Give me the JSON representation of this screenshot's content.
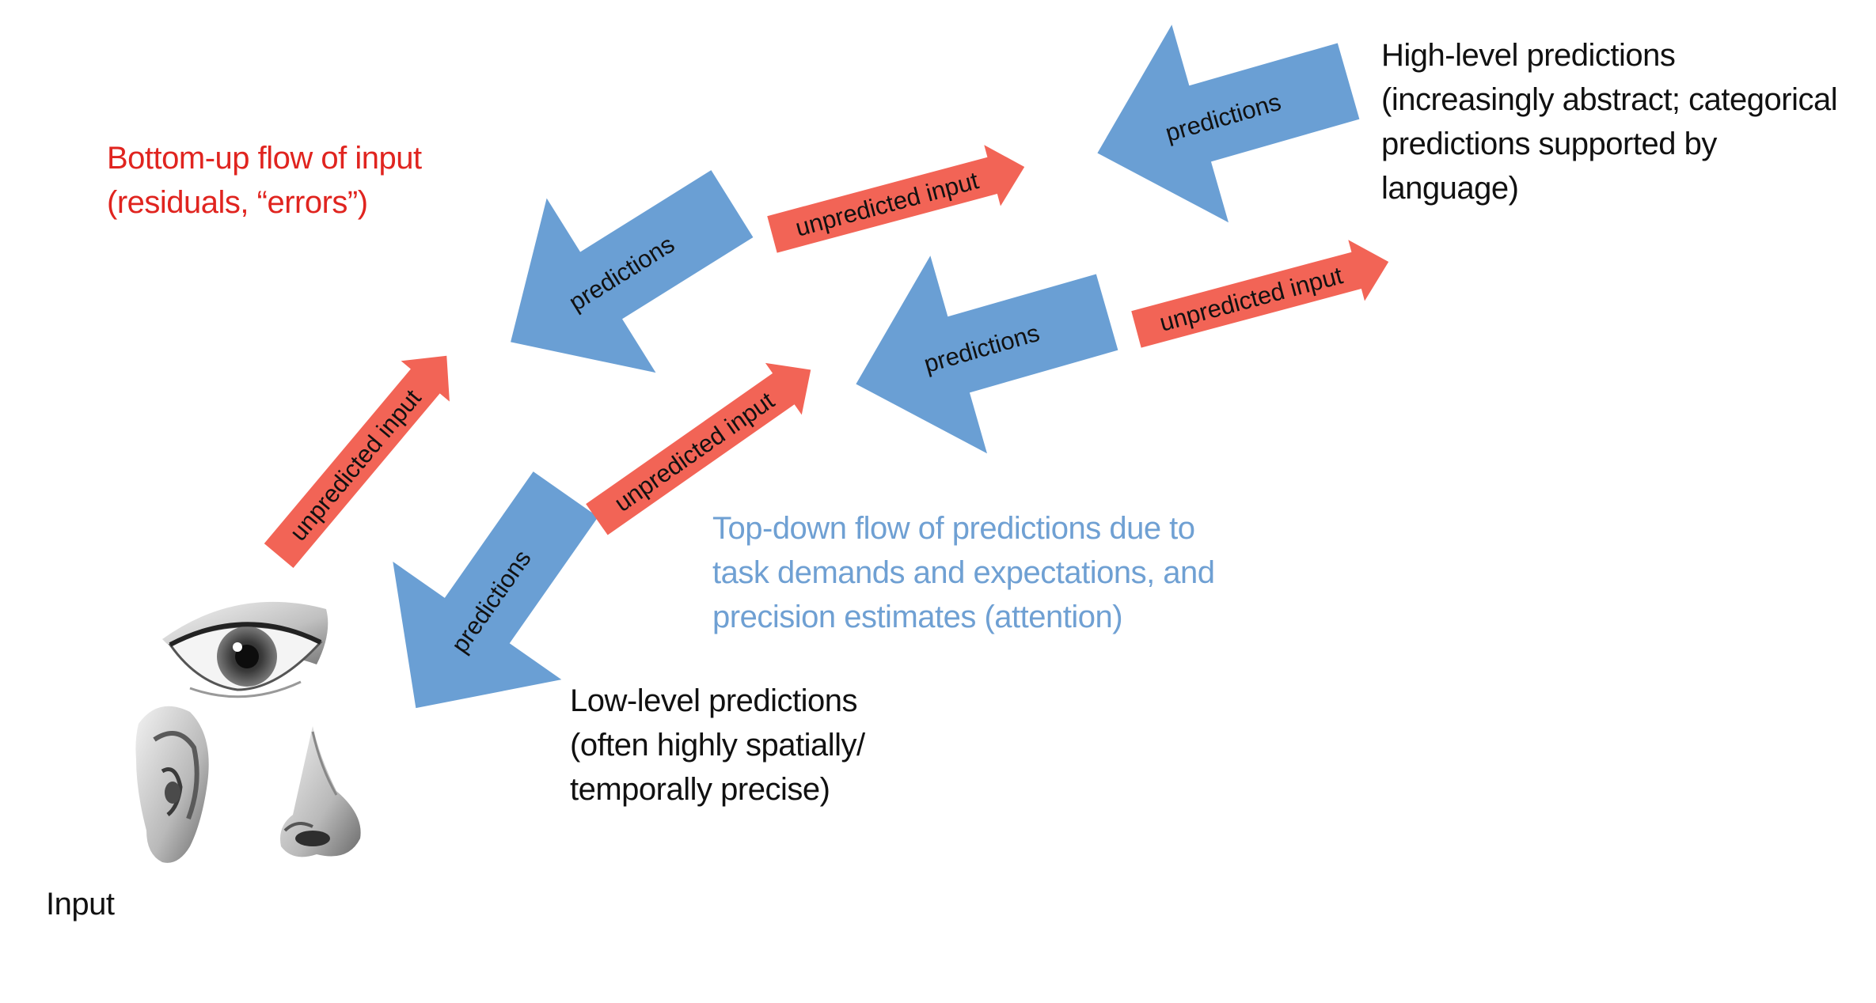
{
  "bottom_up_caption": {
    "line1": "Bottom-up flow of input",
    "line2": "(residuals, “errors”)"
  },
  "top_down_caption": {
    "line1": "Top-down flow of predictions due to",
    "line2": "task demands and expectations, and",
    "line3": "precision estimates (attention)"
  },
  "high_level_caption": {
    "line1": "High-level predictions",
    "line2": "(increasingly abstract; categorical",
    "line3": "predictions supported  by",
    "line4": "language)"
  },
  "low_level_caption": {
    "line1": "Low-level predictions",
    "line2": "(often highly spatially/",
    "line3": "temporally precise)"
  },
  "input_label": "Input",
  "arrows": {
    "prediction_label": "predictions",
    "input_label": "unpredicted input"
  },
  "colors": {
    "prediction_arrow": "#6a9fd4",
    "input_arrow": "#f26456",
    "bottom_up_text": "#e0241f",
    "top_down_text": "#6fa0d3"
  },
  "icons": [
    "eye-icon",
    "ear-icon",
    "nose-icon"
  ]
}
